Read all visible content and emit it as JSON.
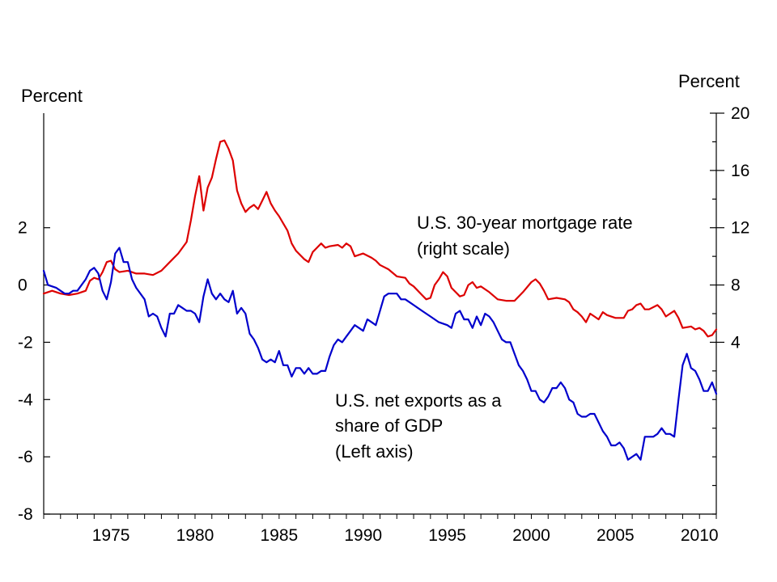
{
  "chart_data": {
    "type": "line",
    "left_axis": {
      "title": "Percent",
      "range": [
        -8,
        6
      ],
      "tick_labels": [
        "2",
        "0",
        "-2",
        "-4",
        "-6",
        "-8"
      ],
      "tick_values": [
        2,
        0,
        -2,
        -4,
        -6,
        -8
      ]
    },
    "right_axis": {
      "title": "Percent",
      "range": [
        -8,
        20
      ],
      "tick_labels": [
        "20",
        "16",
        "12",
        "8",
        "4"
      ],
      "tick_values": [
        20,
        16,
        12,
        8,
        4
      ]
    },
    "x_axis": {
      "range": [
        1971,
        2011
      ],
      "tick_labels": [
        "1975",
        "1980",
        "1985",
        "1990",
        "1995",
        "2000",
        "2005",
        "2010"
      ],
      "tick_values": [
        1975,
        1980,
        1985,
        1990,
        1995,
        2000,
        2005,
        2010
      ]
    },
    "annotations": [
      {
        "lines": [
          "U.S. 30-year mortgage rate",
          "(right scale)"
        ],
        "series": "mortgage"
      },
      {
        "lines": [
          "U.S. net exports as a",
          "share of GDP",
          "(Left axis)"
        ],
        "series": "net_exports"
      }
    ],
    "series": [
      {
        "key": "mortgage",
        "axis": "right",
        "color": "#dd0000",
        "points": [
          [
            1971.0,
            7.4
          ],
          [
            1971.5,
            7.6
          ],
          [
            1972.0,
            7.4
          ],
          [
            1972.5,
            7.3
          ],
          [
            1973.0,
            7.4
          ],
          [
            1973.5,
            7.6
          ],
          [
            1973.75,
            8.3
          ],
          [
            1974.0,
            8.5
          ],
          [
            1974.25,
            8.4
          ],
          [
            1974.5,
            8.9
          ],
          [
            1974.75,
            9.6
          ],
          [
            1975.0,
            9.7
          ],
          [
            1975.25,
            9.1
          ],
          [
            1975.5,
            8.9
          ],
          [
            1976.0,
            9.0
          ],
          [
            1976.5,
            8.8
          ],
          [
            1977.0,
            8.8
          ],
          [
            1977.5,
            8.7
          ],
          [
            1978.0,
            9.0
          ],
          [
            1978.5,
            9.6
          ],
          [
            1979.0,
            10.2
          ],
          [
            1979.5,
            11.0
          ],
          [
            1979.75,
            12.5
          ],
          [
            1980.0,
            14.2
          ],
          [
            1980.25,
            15.6
          ],
          [
            1980.5,
            13.2
          ],
          [
            1980.75,
            14.8
          ],
          [
            1981.0,
            15.5
          ],
          [
            1981.25,
            16.8
          ],
          [
            1981.5,
            18.0
          ],
          [
            1981.75,
            18.1
          ],
          [
            1982.0,
            17.5
          ],
          [
            1982.25,
            16.7
          ],
          [
            1982.5,
            14.6
          ],
          [
            1982.75,
            13.7
          ],
          [
            1983.0,
            13.1
          ],
          [
            1983.25,
            13.4
          ],
          [
            1983.5,
            13.6
          ],
          [
            1983.75,
            13.3
          ],
          [
            1984.0,
            13.9
          ],
          [
            1984.25,
            14.5
          ],
          [
            1984.5,
            13.7
          ],
          [
            1984.75,
            13.2
          ],
          [
            1985.0,
            12.8
          ],
          [
            1985.25,
            12.3
          ],
          [
            1985.5,
            11.8
          ],
          [
            1985.75,
            10.9
          ],
          [
            1986.0,
            10.4
          ],
          [
            1986.5,
            9.8
          ],
          [
            1986.75,
            9.6
          ],
          [
            1987.0,
            10.3
          ],
          [
            1987.25,
            10.6
          ],
          [
            1987.5,
            10.9
          ],
          [
            1987.75,
            10.6
          ],
          [
            1988.0,
            10.7
          ],
          [
            1988.5,
            10.8
          ],
          [
            1988.75,
            10.6
          ],
          [
            1989.0,
            10.9
          ],
          [
            1989.25,
            10.7
          ],
          [
            1989.5,
            10.0
          ],
          [
            1990.0,
            10.2
          ],
          [
            1990.5,
            9.9
          ],
          [
            1990.75,
            9.7
          ],
          [
            1991.0,
            9.4
          ],
          [
            1991.5,
            9.1
          ],
          [
            1992.0,
            8.6
          ],
          [
            1992.5,
            8.5
          ],
          [
            1992.75,
            8.1
          ],
          [
            1993.0,
            7.9
          ],
          [
            1993.5,
            7.3
          ],
          [
            1993.75,
            7.0
          ],
          [
            1994.0,
            7.1
          ],
          [
            1994.25,
            8.0
          ],
          [
            1994.5,
            8.4
          ],
          [
            1994.75,
            8.9
          ],
          [
            1995.0,
            8.6
          ],
          [
            1995.25,
            7.8
          ],
          [
            1995.5,
            7.5
          ],
          [
            1995.75,
            7.2
          ],
          [
            1996.0,
            7.3
          ],
          [
            1996.25,
            8.0
          ],
          [
            1996.5,
            8.2
          ],
          [
            1996.75,
            7.8
          ],
          [
            1997.0,
            7.9
          ],
          [
            1997.5,
            7.5
          ],
          [
            1998.0,
            7.0
          ],
          [
            1998.5,
            6.9
          ],
          [
            1999.0,
            6.9
          ],
          [
            1999.5,
            7.5
          ],
          [
            2000.0,
            8.2
          ],
          [
            2000.25,
            8.4
          ],
          [
            2000.5,
            8.1
          ],
          [
            2000.75,
            7.6
          ],
          [
            2001.0,
            7.0
          ],
          [
            2001.5,
            7.1
          ],
          [
            2002.0,
            7.0
          ],
          [
            2002.25,
            6.8
          ],
          [
            2002.5,
            6.3
          ],
          [
            2002.75,
            6.1
          ],
          [
            2003.0,
            5.8
          ],
          [
            2003.25,
            5.4
          ],
          [
            2003.5,
            6.0
          ],
          [
            2003.75,
            5.8
          ],
          [
            2004.0,
            5.6
          ],
          [
            2004.25,
            6.1
          ],
          [
            2004.5,
            5.9
          ],
          [
            2005.0,
            5.7
          ],
          [
            2005.5,
            5.7
          ],
          [
            2005.75,
            6.2
          ],
          [
            2006.0,
            6.3
          ],
          [
            2006.25,
            6.6
          ],
          [
            2006.5,
            6.7
          ],
          [
            2006.75,
            6.3
          ],
          [
            2007.0,
            6.3
          ],
          [
            2007.5,
            6.6
          ],
          [
            2007.75,
            6.3
          ],
          [
            2008.0,
            5.8
          ],
          [
            2008.5,
            6.2
          ],
          [
            2008.75,
            5.7
          ],
          [
            2009.0,
            5.0
          ],
          [
            2009.5,
            5.1
          ],
          [
            2009.75,
            4.9
          ],
          [
            2010.0,
            5.0
          ],
          [
            2010.25,
            4.8
          ],
          [
            2010.5,
            4.4
          ],
          [
            2010.75,
            4.5
          ],
          [
            2011.0,
            4.9
          ]
        ]
      },
      {
        "key": "net_exports",
        "axis": "left",
        "color": "#0000cc",
        "points": [
          [
            1971.0,
            0.5
          ],
          [
            1971.25,
            0.0
          ],
          [
            1971.75,
            -0.1
          ],
          [
            1972.0,
            -0.2
          ],
          [
            1972.25,
            -0.3
          ],
          [
            1972.5,
            -0.3
          ],
          [
            1972.75,
            -0.2
          ],
          [
            1973.0,
            -0.2
          ],
          [
            1973.5,
            0.2
          ],
          [
            1973.75,
            0.5
          ],
          [
            1974.0,
            0.6
          ],
          [
            1974.25,
            0.4
          ],
          [
            1974.5,
            -0.2
          ],
          [
            1974.75,
            -0.5
          ],
          [
            1975.0,
            0.1
          ],
          [
            1975.25,
            1.1
          ],
          [
            1975.5,
            1.3
          ],
          [
            1975.75,
            0.8
          ],
          [
            1976.0,
            0.8
          ],
          [
            1976.25,
            0.2
          ],
          [
            1976.5,
            -0.1
          ],
          [
            1977.0,
            -0.5
          ],
          [
            1977.25,
            -1.1
          ],
          [
            1977.5,
            -1.0
          ],
          [
            1977.75,
            -1.1
          ],
          [
            1978.0,
            -1.5
          ],
          [
            1978.25,
            -1.8
          ],
          [
            1978.5,
            -1.0
          ],
          [
            1978.75,
            -1.0
          ],
          [
            1979.0,
            -0.7
          ],
          [
            1979.25,
            -0.8
          ],
          [
            1979.5,
            -0.9
          ],
          [
            1979.75,
            -0.9
          ],
          [
            1980.0,
            -1.0
          ],
          [
            1980.25,
            -1.3
          ],
          [
            1980.5,
            -0.4
          ],
          [
            1980.75,
            0.2
          ],
          [
            1981.0,
            -0.3
          ],
          [
            1981.25,
            -0.5
          ],
          [
            1981.5,
            -0.3
          ],
          [
            1981.75,
            -0.5
          ],
          [
            1982.0,
            -0.6
          ],
          [
            1982.25,
            -0.2
          ],
          [
            1982.5,
            -1.0
          ],
          [
            1982.75,
            -0.8
          ],
          [
            1983.0,
            -1.0
          ],
          [
            1983.25,
            -1.7
          ],
          [
            1983.5,
            -1.9
          ],
          [
            1983.75,
            -2.2
          ],
          [
            1984.0,
            -2.6
          ],
          [
            1984.25,
            -2.7
          ],
          [
            1984.5,
            -2.6
          ],
          [
            1984.75,
            -2.7
          ],
          [
            1985.0,
            -2.3
          ],
          [
            1985.25,
            -2.8
          ],
          [
            1985.5,
            -2.8
          ],
          [
            1985.75,
            -3.2
          ],
          [
            1986.0,
            -2.9
          ],
          [
            1986.25,
            -2.9
          ],
          [
            1986.5,
            -3.1
          ],
          [
            1986.75,
            -2.9
          ],
          [
            1987.0,
            -3.1
          ],
          [
            1987.25,
            -3.1
          ],
          [
            1987.5,
            -3.0
          ],
          [
            1987.75,
            -3.0
          ],
          [
            1988.0,
            -2.5
          ],
          [
            1988.25,
            -2.1
          ],
          [
            1988.5,
            -1.9
          ],
          [
            1988.75,
            -2.0
          ],
          [
            1989.0,
            -1.8
          ],
          [
            1989.25,
            -1.6
          ],
          [
            1989.5,
            -1.4
          ],
          [
            1989.75,
            -1.5
          ],
          [
            1990.0,
            -1.6
          ],
          [
            1990.25,
            -1.2
          ],
          [
            1990.5,
            -1.3
          ],
          [
            1990.75,
            -1.4
          ],
          [
            1991.0,
            -0.9
          ],
          [
            1991.25,
            -0.4
          ],
          [
            1991.5,
            -0.3
          ],
          [
            1992.0,
            -0.3
          ],
          [
            1992.25,
            -0.5
          ],
          [
            1992.5,
            -0.5
          ],
          [
            1992.75,
            -0.6
          ],
          [
            1993.0,
            -0.7
          ],
          [
            1993.5,
            -0.9
          ],
          [
            1994.0,
            -1.1
          ],
          [
            1994.5,
            -1.3
          ],
          [
            1995.0,
            -1.4
          ],
          [
            1995.25,
            -1.5
          ],
          [
            1995.5,
            -1.0
          ],
          [
            1995.75,
            -0.9
          ],
          [
            1996.0,
            -1.2
          ],
          [
            1996.25,
            -1.2
          ],
          [
            1996.5,
            -1.5
          ],
          [
            1996.75,
            -1.1
          ],
          [
            1997.0,
            -1.4
          ],
          [
            1997.25,
            -1.0
          ],
          [
            1997.5,
            -1.1
          ],
          [
            1997.75,
            -1.3
          ],
          [
            1998.0,
            -1.6
          ],
          [
            1998.25,
            -1.9
          ],
          [
            1998.5,
            -2.0
          ],
          [
            1998.75,
            -2.0
          ],
          [
            1999.0,
            -2.4
          ],
          [
            1999.25,
            -2.8
          ],
          [
            1999.5,
            -3.0
          ],
          [
            1999.75,
            -3.3
          ],
          [
            2000.0,
            -3.7
          ],
          [
            2000.25,
            -3.7
          ],
          [
            2000.5,
            -4.0
          ],
          [
            2000.75,
            -4.1
          ],
          [
            2001.0,
            -3.9
          ],
          [
            2001.25,
            -3.6
          ],
          [
            2001.5,
            -3.6
          ],
          [
            2001.75,
            -3.4
          ],
          [
            2002.0,
            -3.6
          ],
          [
            2002.25,
            -4.0
          ],
          [
            2002.5,
            -4.1
          ],
          [
            2002.75,
            -4.5
          ],
          [
            2003.0,
            -4.6
          ],
          [
            2003.25,
            -4.6
          ],
          [
            2003.5,
            -4.5
          ],
          [
            2003.75,
            -4.5
          ],
          [
            2004.0,
            -4.8
          ],
          [
            2004.25,
            -5.1
          ],
          [
            2004.5,
            -5.3
          ],
          [
            2004.75,
            -5.6
          ],
          [
            2005.0,
            -5.6
          ],
          [
            2005.25,
            -5.5
          ],
          [
            2005.5,
            -5.7
          ],
          [
            2005.75,
            -6.1
          ],
          [
            2006.0,
            -6.0
          ],
          [
            2006.25,
            -5.9
          ],
          [
            2006.5,
            -6.1
          ],
          [
            2006.75,
            -5.3
          ],
          [
            2007.0,
            -5.3
          ],
          [
            2007.25,
            -5.3
          ],
          [
            2007.5,
            -5.2
          ],
          [
            2007.75,
            -5.0
          ],
          [
            2008.0,
            -5.2
          ],
          [
            2008.25,
            -5.2
          ],
          [
            2008.5,
            -5.3
          ],
          [
            2008.75,
            -4.0
          ],
          [
            2009.0,
            -2.8
          ],
          [
            2009.25,
            -2.4
          ],
          [
            2009.5,
            -2.9
          ],
          [
            2009.75,
            -3.0
          ],
          [
            2010.0,
            -3.3
          ],
          [
            2010.25,
            -3.7
          ],
          [
            2010.5,
            -3.7
          ],
          [
            2010.75,
            -3.4
          ],
          [
            2011.0,
            -3.8
          ]
        ]
      }
    ]
  }
}
